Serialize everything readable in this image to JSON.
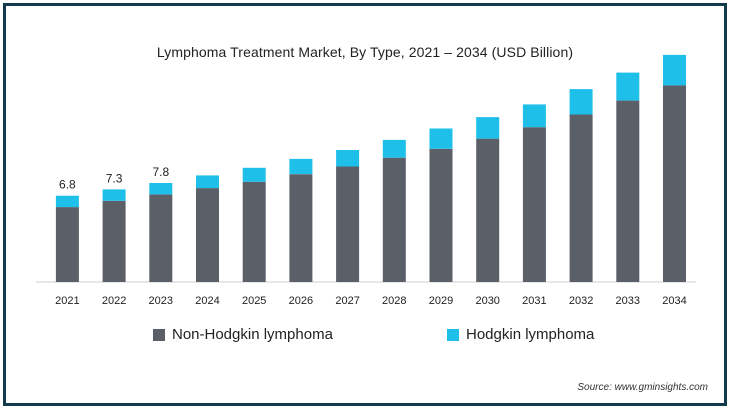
{
  "chart_data": {
    "type": "bar",
    "stacked": true,
    "title": "Lymphoma Treatment Market, By Type, 2021 – 2034   (USD Billion)",
    "categories": [
      "2021",
      "2022",
      "2023",
      "2024",
      "2025",
      "2026",
      "2027",
      "2028",
      "2029",
      "2030",
      "2031",
      "2032",
      "2033",
      "2034"
    ],
    "series": [
      {
        "name": "Non-Hodgkin lymphoma",
        "color": "#5a5f68",
        "values": [
          5.9,
          6.4,
          6.9,
          7.4,
          7.9,
          8.5,
          9.1,
          9.8,
          10.5,
          11.3,
          12.2,
          13.2,
          14.3,
          15.5
        ]
      },
      {
        "name": "Hodgkin lymphoma",
        "color": "#1ec0ea",
        "values": [
          0.9,
          0.9,
          0.9,
          1.0,
          1.1,
          1.2,
          1.3,
          1.4,
          1.6,
          1.7,
          1.8,
          2.0,
          2.2,
          2.4
        ]
      }
    ],
    "data_labels": [
      "6.8",
      "7.3",
      "7.8"
    ],
    "ylim": [
      0,
      18.6
    ],
    "grid": false,
    "legend_position": "bottom"
  },
  "source": "Source: www.gminsights.com"
}
